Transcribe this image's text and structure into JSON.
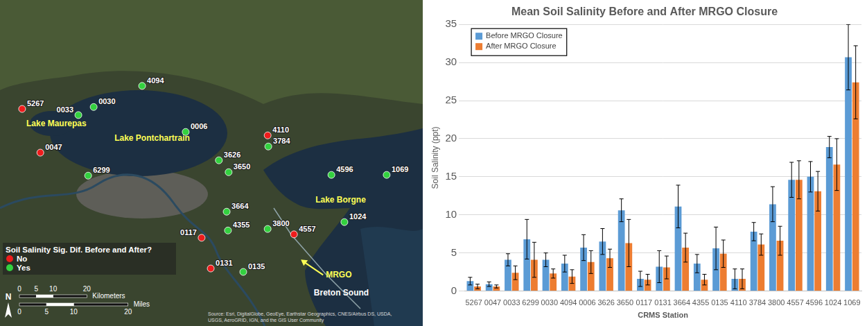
{
  "map": {
    "extent": {
      "lon": [
        -90.62,
        -89.32
      ],
      "lat": [
        29.6,
        30.45
      ]
    },
    "legend": {
      "title": "Soil Salinity Sig. Dif. Before and After?",
      "items": [
        {
          "label": "No",
          "color": "#ee1c1c"
        },
        {
          "label": "Yes",
          "color": "#33d13f"
        }
      ]
    },
    "stations": [
      {
        "id": "5267",
        "lon": -90.552,
        "lat": 30.166,
        "sig": "No"
      },
      {
        "id": "0033",
        "lon": -90.379,
        "lat": 30.15,
        "sig": "Yes"
      },
      {
        "id": "0030",
        "lon": -90.332,
        "lat": 30.171,
        "sig": "Yes"
      },
      {
        "id": "4094",
        "lon": -90.183,
        "lat": 30.226,
        "sig": "Yes"
      },
      {
        "id": "0006",
        "lon": -90.049,
        "lat": 30.106,
        "sig": "Yes"
      },
      {
        "id": "0047",
        "lon": -90.496,
        "lat": 30.052,
        "sig": "No"
      },
      {
        "id": "6299",
        "lon": -90.349,
        "lat": 29.992,
        "sig": "Yes"
      },
      {
        "id": "4110",
        "lon": -89.797,
        "lat": 30.097,
        "sig": "No"
      },
      {
        "id": "3784",
        "lon": -89.795,
        "lat": 30.068,
        "sig": "Yes"
      },
      {
        "id": "3626",
        "lon": -89.947,
        "lat": 30.032,
        "sig": "Yes"
      },
      {
        "id": "3650",
        "lon": -89.917,
        "lat": 30.001,
        "sig": "Yes"
      },
      {
        "id": "4596",
        "lon": -89.601,
        "lat": 29.994,
        "sig": "Yes"
      },
      {
        "id": "1069",
        "lon": -89.431,
        "lat": 29.994,
        "sig": "Yes"
      },
      {
        "id": "3664",
        "lon": -89.923,
        "lat": 29.898,
        "sig": "Yes"
      },
      {
        "id": "4355",
        "lon": -89.919,
        "lat": 29.849,
        "sig": "Yes"
      },
      {
        "id": "0117",
        "lon": -90.0,
        "lat": 29.83,
        "sig": "No"
      },
      {
        "id": "3800",
        "lon": -89.797,
        "lat": 29.853,
        "sig": "Yes"
      },
      {
        "id": "4557",
        "lon": -89.716,
        "lat": 29.839,
        "sig": "No"
      },
      {
        "id": "1024",
        "lon": -89.561,
        "lat": 29.871,
        "sig": "Yes"
      },
      {
        "id": "0131",
        "lon": -89.972,
        "lat": 29.75,
        "sig": "No"
      },
      {
        "id": "0135",
        "lon": -89.872,
        "lat": 29.741,
        "sig": "Yes"
      }
    ],
    "labels": [
      {
        "text": "Lake Maurepas",
        "lon": -90.539,
        "lat": 30.121,
        "color": "#ffff55"
      },
      {
        "text": "Lake Pontchartrain",
        "lon": -90.268,
        "lat": 30.083,
        "color": "#ffff55"
      },
      {
        "text": "Lake Borgne",
        "lon": -89.65,
        "lat": 29.922,
        "color": "#ffff55"
      },
      {
        "text": "Breton Sound",
        "lon": -89.655,
        "lat": 29.679,
        "color": "#ffffff"
      },
      {
        "text": "MRGO",
        "lon": -89.618,
        "lat": 29.726,
        "color": "#ffff55"
      }
    ],
    "scale_bar": {
      "km_ticks": [
        0,
        5,
        10,
        20
      ],
      "km_unit": "Kilometers",
      "mi_ticks": [
        0,
        5,
        10,
        20
      ],
      "mi_unit": "Miles"
    },
    "north": "N",
    "attribution": "Source: Esri, DigitalGlobe, GeoEye, Earthstar Geographics, CNES/Airbus DS, USDA, USGS, AeroGRID, IGN, and the GIS User Community"
  },
  "chart_data": {
    "type": "bar",
    "title": "Mean Soil Salinity Before and After MRGO Closure",
    "x_label": "CRMS Station",
    "y_label": "Soil Salinity (ppt)",
    "categories": [
      "5267",
      "0047",
      "0033",
      "6299",
      "0030",
      "4094",
      "0006",
      "3626",
      "3650",
      "0117",
      "0131",
      "3664",
      "4355",
      "0135",
      "4110",
      "3784",
      "3800",
      "4557",
      "4596",
      "1024",
      "1069"
    ],
    "series": [
      {
        "name": "Before MRGO Closure",
        "color": "#5b9bd5",
        "values": [
          1.3,
          0.9,
          4.1,
          6.8,
          4.1,
          3.6,
          5.7,
          6.5,
          10.6,
          1.6,
          3.2,
          11.1,
          3.6,
          5.6,
          1.6,
          7.8,
          11.4,
          14.6,
          15.0,
          18.9,
          30.7
        ],
        "errors": [
          0.5,
          0.3,
          0.8,
          2.6,
          0.9,
          1.1,
          1.7,
          1.7,
          1.5,
          1.0,
          2.1,
          2.8,
          1.2,
          2.8,
          1.3,
          1.2,
          2.3,
          2.3,
          2.0,
          1.4,
          4.3
        ]
      },
      {
        "name": "After MRGO Closure",
        "color": "#ed7d31",
        "values": [
          0.6,
          0.6,
          2.4,
          4.1,
          2.3,
          1.9,
          3.8,
          4.3,
          6.3,
          1.5,
          3.1,
          5.7,
          1.5,
          4.9,
          1.6,
          6.1,
          6.6,
          14.6,
          13.1,
          16.6,
          27.4
        ],
        "errors": [
          0.3,
          0.2,
          0.9,
          2.3,
          0.6,
          0.9,
          1.5,
          1.2,
          3.1,
          0.7,
          1.5,
          1.9,
          0.7,
          1.8,
          1.3,
          1.4,
          1.9,
          2.5,
          2.6,
          3.4,
          4.8
        ]
      }
    ],
    "ylim": [
      0,
      35
    ],
    "yticks": [
      0,
      5,
      10,
      15,
      20,
      25,
      30,
      35
    ],
    "grid": true,
    "legend": "top-left"
  }
}
